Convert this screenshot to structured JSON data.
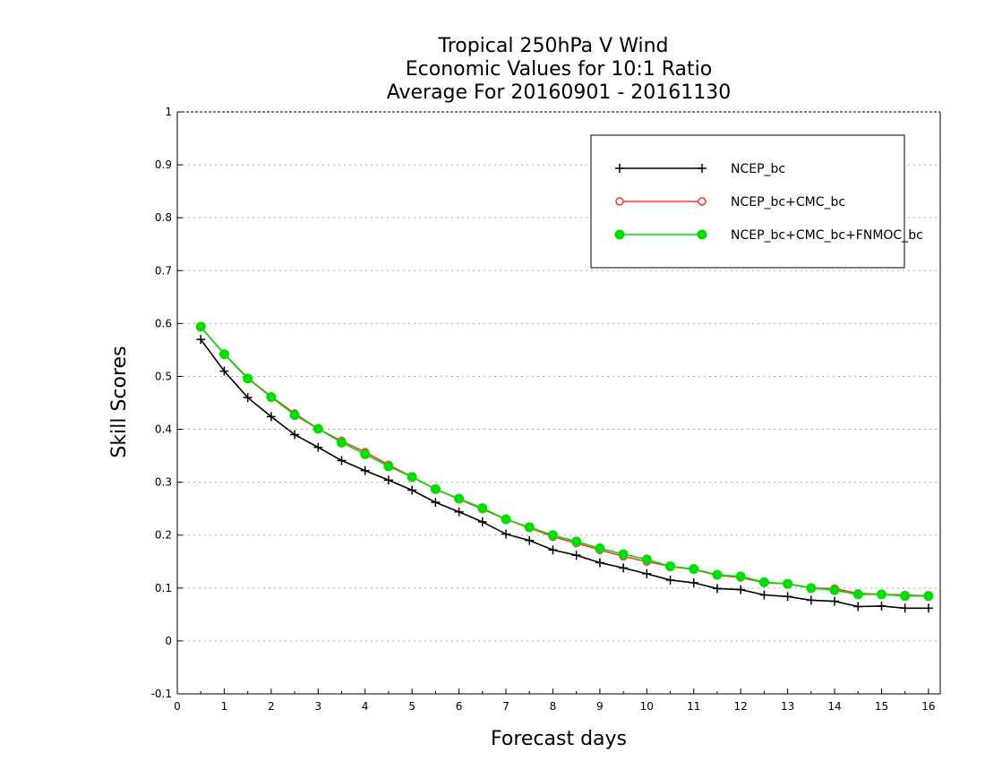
{
  "chart_data": {
    "type": "line",
    "title_lines": [
      "Tropical 250hPa V Wind",
      "Economic Values for 10:1 Ratio",
      "Average For 20160901 - 20161130"
    ],
    "xlabel": "Forecast days",
    "ylabel": "Skill Scores",
    "xlim": [
      0,
      16.25
    ],
    "ylim": [
      -0.1,
      1
    ],
    "xticks": [
      0,
      1,
      2,
      3,
      4,
      5,
      6,
      7,
      8,
      9,
      10,
      11,
      12,
      13,
      14,
      15,
      16
    ],
    "yticks": [
      -0.1,
      0,
      0.1,
      0.2,
      0.3,
      0.4,
      0.5,
      0.6,
      0.7,
      0.8,
      0.9,
      1
    ],
    "ytick_labels": [
      "-0.1",
      "0",
      "0.1",
      "0.2",
      "0.3",
      "0.4",
      "0.5",
      "0.6",
      "0.7",
      "0.8",
      "0.9",
      "1"
    ],
    "grid": "dotted horizontal",
    "legend_position": "top-right",
    "x": [
      0.5,
      1,
      1.5,
      2,
      2.5,
      3,
      3.5,
      4,
      4.5,
      5,
      5.5,
      6,
      6.5,
      7,
      7.5,
      8,
      8.5,
      9,
      9.5,
      10,
      10.5,
      11,
      11.5,
      12,
      12.5,
      13,
      13.5,
      14,
      14.5,
      15,
      15.5,
      16
    ],
    "series": [
      {
        "name": "NCEP_bc",
        "color": "#000000",
        "marker": "plus",
        "values": [
          0.57,
          0.51,
          0.46,
          0.424,
          0.39,
          0.366,
          0.341,
          0.322,
          0.304,
          0.285,
          0.262,
          0.244,
          0.225,
          0.202,
          0.19,
          0.172,
          0.162,
          0.148,
          0.138,
          0.127,
          0.115,
          0.11,
          0.099,
          0.097,
          0.087,
          0.084,
          0.077,
          0.075,
          0.065,
          0.066,
          0.062,
          0.062
        ]
      },
      {
        "name": "NCEP_bc+CMC_bc",
        "color": "#ff3333",
        "marker": "open-circle",
        "values": [
          0.593,
          0.543,
          0.497,
          0.462,
          0.43,
          0.401,
          0.378,
          0.357,
          0.333,
          0.31,
          0.287,
          0.268,
          0.249,
          0.23,
          0.214,
          0.197,
          0.185,
          0.172,
          0.16,
          0.15,
          0.141,
          0.135,
          0.124,
          0.12,
          0.11,
          0.108,
          0.1,
          0.099,
          0.09,
          0.088,
          0.087,
          0.085
        ]
      },
      {
        "name": "NCEP_bc+CMC_bc+FNMOC_bc",
        "color": "#00dd00",
        "marker": "filled-circle",
        "values": [
          0.594,
          0.542,
          0.496,
          0.461,
          0.427,
          0.401,
          0.375,
          0.353,
          0.33,
          0.31,
          0.287,
          0.269,
          0.251,
          0.23,
          0.215,
          0.2,
          0.188,
          0.175,
          0.164,
          0.154,
          0.141,
          0.136,
          0.125,
          0.122,
          0.111,
          0.108,
          0.1,
          0.096,
          0.088,
          0.088,
          0.085,
          0.085
        ]
      }
    ]
  }
}
